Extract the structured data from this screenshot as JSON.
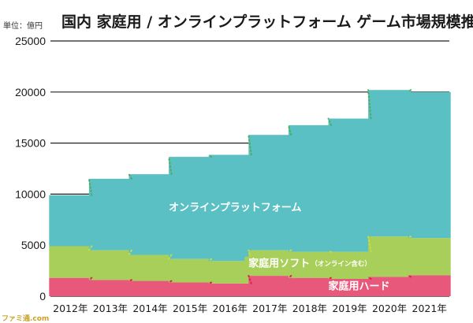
{
  "chart_data": {
    "type": "bar",
    "stacked": true,
    "title": "国内 家庭用 / オンラインプラットフォーム ゲーム市場規模推移",
    "unit_label": "単位：億円",
    "categories": [
      "2012年",
      "2013年",
      "2014年",
      "2015年",
      "2016年",
      "2017年",
      "2018年",
      "2019年",
      "2020年",
      "2021年"
    ],
    "ylim": [
      0,
      25000
    ],
    "yticks": [
      0,
      5000,
      10000,
      15000,
      20000,
      25000
    ],
    "grid": true,
    "series": [
      {
        "name": "家庭用ハード",
        "color": "#e8587a",
        "trend_color": "#d9234f",
        "values": [
          1800,
          1600,
          1500,
          1350,
          1250,
          2000,
          1800,
          1700,
          1900,
          2050
        ],
        "label": "家庭用ハード"
      },
      {
        "name": "家庭用ソフト（オンライン含む）",
        "color": "#a8cf5a",
        "trend_color": "#c9dc3a",
        "values": [
          3100,
          2900,
          2550,
          2300,
          2200,
          2500,
          2550,
          2650,
          3950,
          3650
        ],
        "label": "家庭用ソフト",
        "label_note": "（オンライン含む）"
      },
      {
        "name": "オンラインプラットフォーム",
        "color": "#5bc0c4",
        "trend_color": "#4fae5a",
        "values": [
          5000,
          7000,
          7900,
          10000,
          10400,
          11300,
          12400,
          13050,
          14350,
          14300
        ],
        "label": "オンラインプラットフォーム"
      }
    ]
  },
  "watermark": "ファミ通.com"
}
